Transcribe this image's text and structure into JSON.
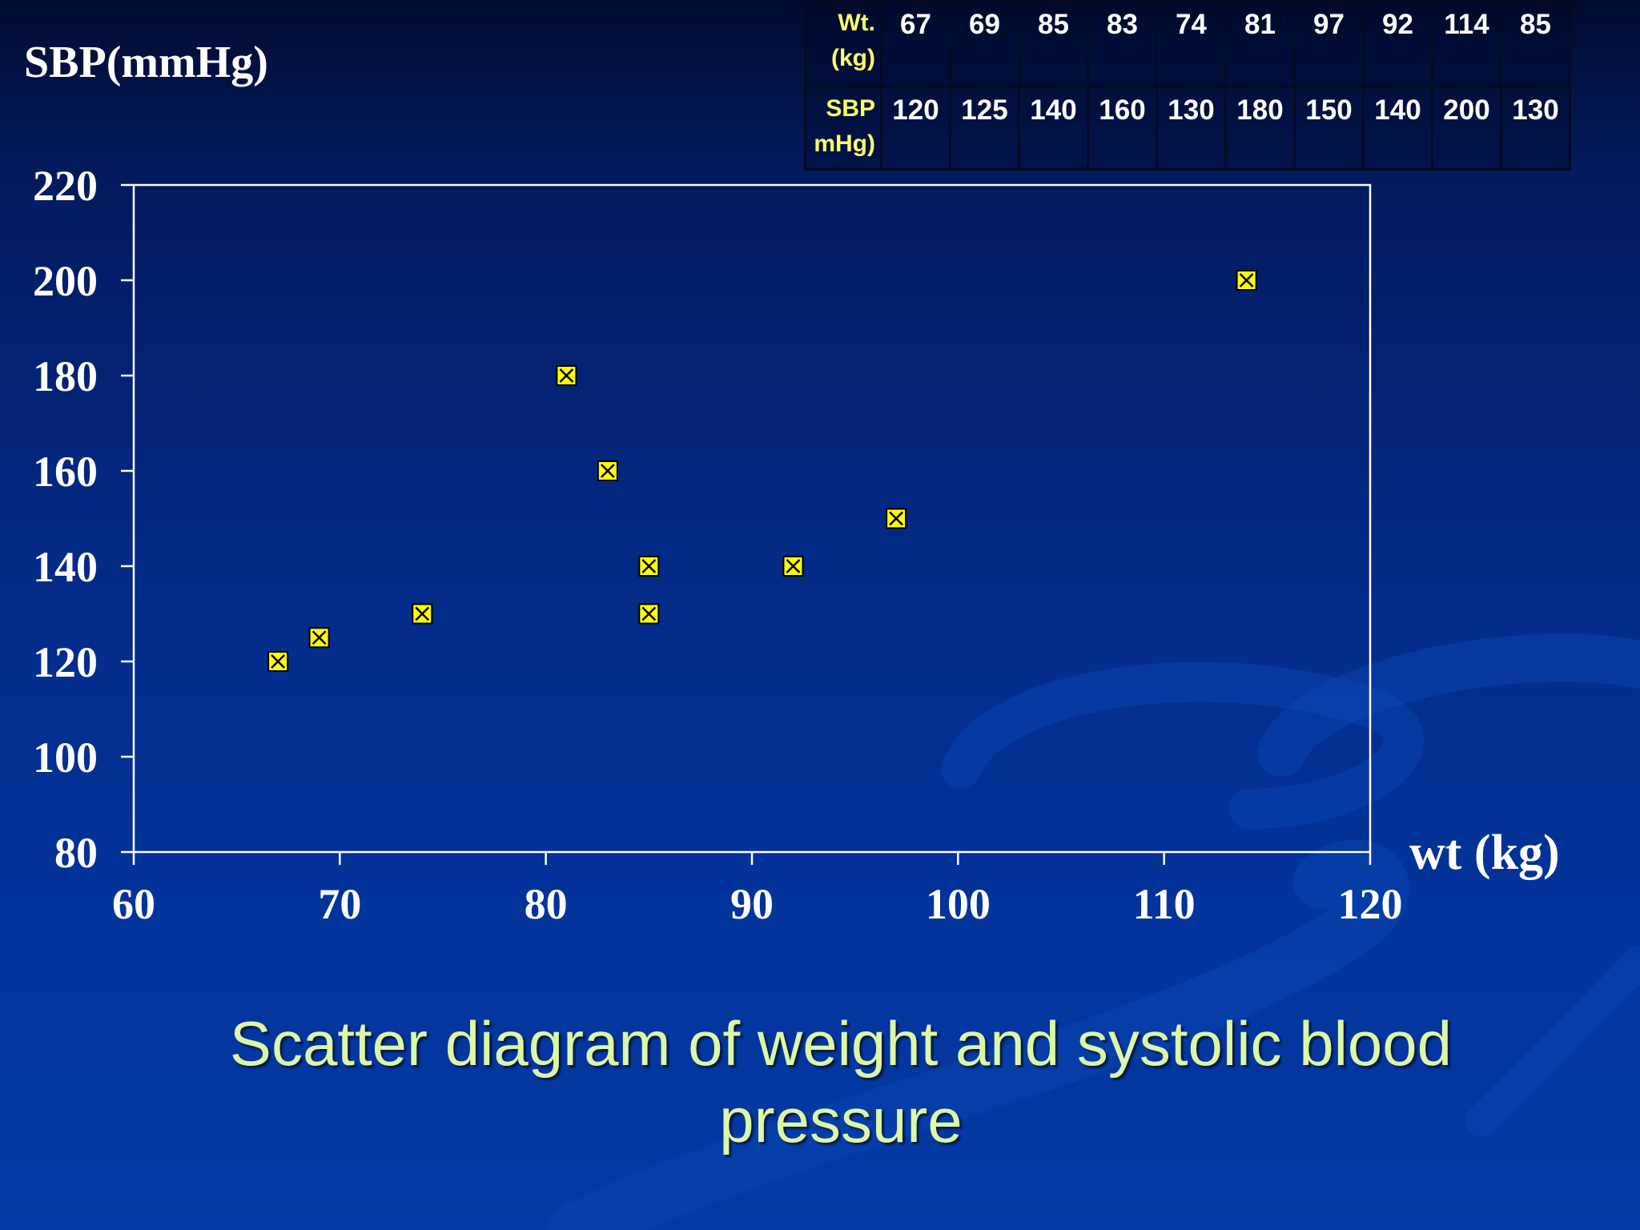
{
  "slide": {
    "caption_line1": "Scatter diagram of weight and systolic blood",
    "caption_line2": "pressure"
  },
  "table": {
    "row1_header_line1": "Wt.",
    "row1_header_line2": "(kg)",
    "row2_header_line1": "SBP",
    "row2_header_line2": "mHg)",
    "weights": [
      "67",
      "69",
      "85",
      "83",
      "74",
      "81",
      "97",
      "92",
      "114",
      "85"
    ],
    "sbp": [
      "120",
      "125",
      "140",
      "160",
      "130",
      "180",
      "150",
      "140",
      "200",
      "130"
    ]
  },
  "chart_data": {
    "type": "scatter",
    "ylabel": "SBP(mmHg)",
    "xlabel": "wt (kg)",
    "xlim": [
      60,
      120
    ],
    "ylim": [
      80,
      220
    ],
    "xticks": [
      60,
      70,
      80,
      90,
      100,
      110,
      120
    ],
    "yticks": [
      80,
      100,
      120,
      140,
      160,
      180,
      200,
      220
    ],
    "x": [
      67,
      69,
      85,
      83,
      74,
      81,
      97,
      92,
      114,
      85
    ],
    "y": [
      120,
      125,
      140,
      160,
      130,
      180,
      150,
      140,
      200,
      130
    ],
    "grid": false,
    "legend": "none",
    "marker_fill": "#ffff00",
    "marker_stroke": "#000000",
    "axis_color": "#ffffff"
  }
}
